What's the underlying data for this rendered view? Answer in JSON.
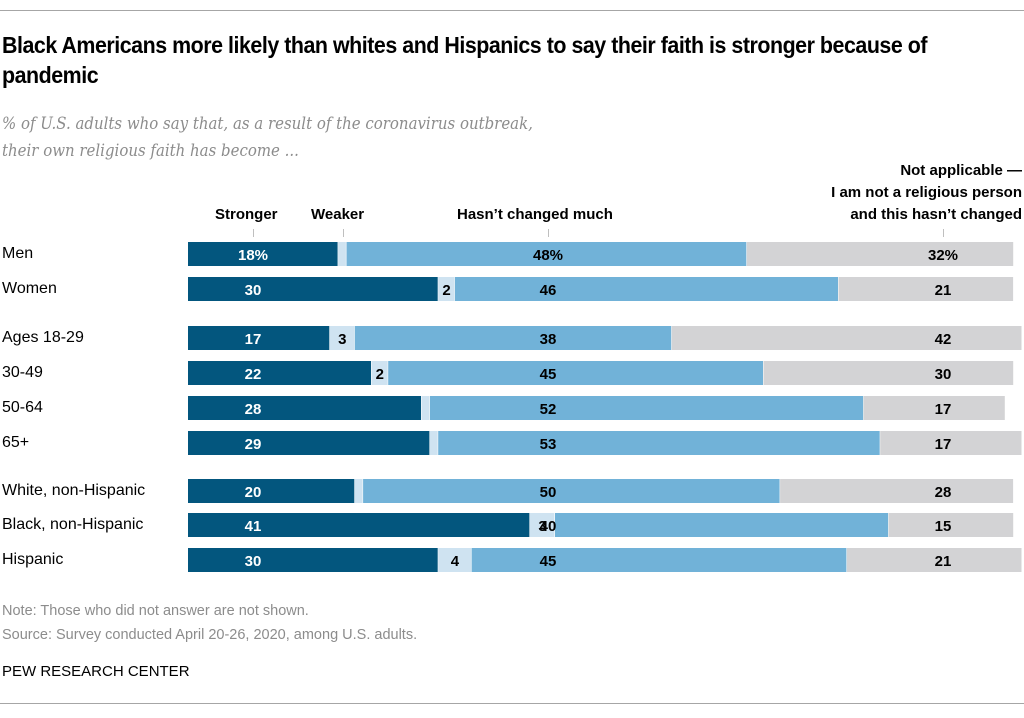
{
  "header": {
    "title": "Black Americans more likely than whites and Hispanics to say their faith is stronger because of pandemic",
    "subtitle_line1": "% of U.S. adults who say that, as a result of the coronavirus outbreak,",
    "subtitle_line2": "their own religious faith has become ..."
  },
  "legend_headers": {
    "stronger": "Stronger",
    "weaker": "Weaker",
    "unchanged": "Hasn’t changed much",
    "na_line1": "Not applicable —",
    "na_line2": "I am not a religious person",
    "na_line3": "and this hasn’t changed"
  },
  "colors": {
    "stronger": "#03567e",
    "weaker": "#cfe3f1",
    "unchanged": "#71b2d8",
    "not_applicable": "#d3d3d5"
  },
  "chart_data": {
    "type": "bar",
    "orientation": "horizontal",
    "stacked": true,
    "title": "Black Americans more likely than whites and Hispanics to say their faith is stronger because of pandemic",
    "subtitle": "% of U.S. adults who say that, as a result of the coronavirus outbreak, their own religious faith has become ...",
    "xlim": [
      0,
      100
    ],
    "categories": [
      "Men",
      "Women",
      "Ages 18-29",
      "30-49",
      "50-64",
      "65+",
      "White, non-Hispanic",
      "Black, non-Hispanic",
      "Hispanic"
    ],
    "groups": [
      [
        "Men",
        "Women"
      ],
      [
        "Ages 18-29",
        "30-49",
        "50-64",
        "65+"
      ],
      [
        "White, non-Hispanic",
        "Black, non-Hispanic",
        "Hispanic"
      ]
    ],
    "series": [
      {
        "name": "Stronger",
        "values": [
          18,
          30,
          17,
          22,
          28,
          29,
          20,
          41,
          30
        ],
        "labels": [
          "18%",
          "30",
          "17",
          "22",
          "28",
          "29",
          "20",
          "41",
          "30"
        ]
      },
      {
        "name": "Weaker",
        "values": [
          1,
          2,
          3,
          2,
          1,
          1,
          1,
          3,
          4
        ],
        "labels": [
          "",
          "2",
          "3",
          "2",
          "",
          "",
          "",
          "3",
          "4"
        ]
      },
      {
        "name": "Hasn’t changed much",
        "values": [
          48,
          46,
          38,
          45,
          52,
          53,
          50,
          40,
          45
        ],
        "labels": [
          "48%",
          "46",
          "38",
          "45",
          "52",
          "53",
          "50",
          "40",
          "45"
        ]
      },
      {
        "name": "Not applicable — I am not a religious person and this hasn’t changed",
        "values": [
          32,
          21,
          42,
          30,
          17,
          17,
          28,
          15,
          21
        ],
        "labels": [
          "32%",
          "21",
          "42",
          "30",
          "17",
          "17",
          "28",
          "15",
          "21"
        ]
      }
    ],
    "note": "Note: Those who did not answer are not shown."
  },
  "footer": {
    "note": "Note: Those who did not answer are not shown.",
    "source": "Source: Survey conducted April 20-26, 2020, among U.S. adults.",
    "brand": "PEW RESEARCH CENTER"
  }
}
